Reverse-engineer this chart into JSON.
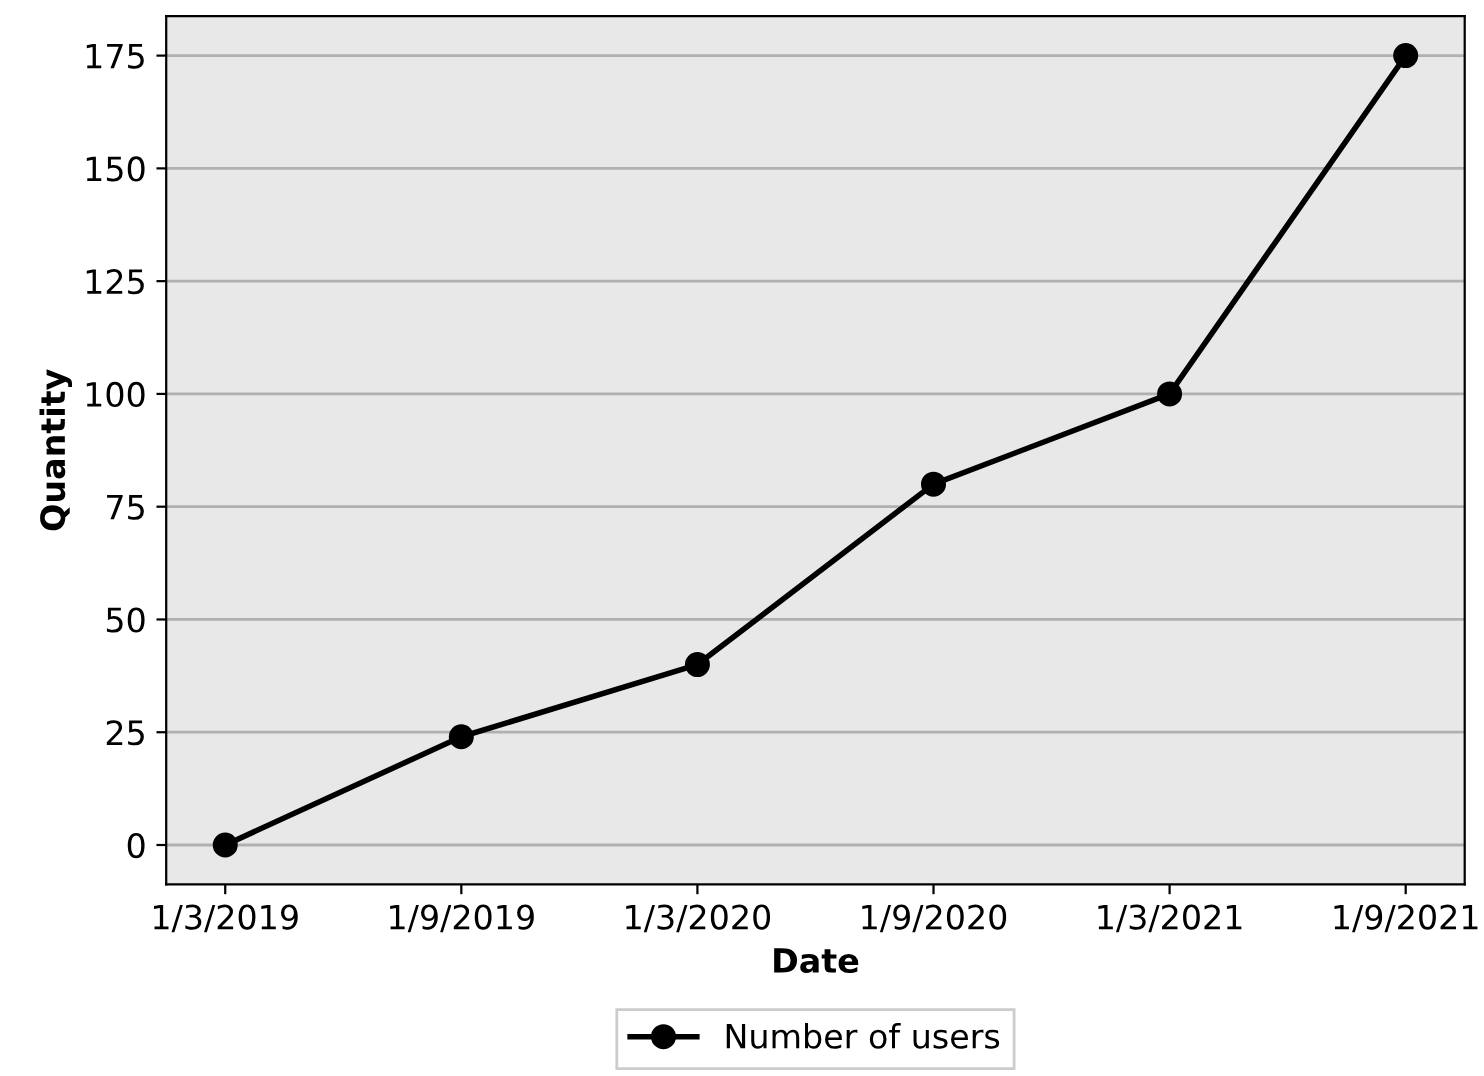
{
  "chart_data": {
    "type": "line",
    "xlabel": "Date",
    "ylabel": "Quantity",
    "categories": [
      "1/3/2019",
      "1/9/2019",
      "1/3/2020",
      "1/9/2020",
      "1/3/2021",
      "1/9/2021"
    ],
    "series": [
      {
        "name": "Number of users",
        "color": "#000000",
        "values": [
          0,
          24,
          40,
          80,
          100,
          175
        ]
      }
    ],
    "ylim": [
      -8.75,
      183.75
    ],
    "yticks": [
      0,
      25,
      50,
      75,
      100,
      125,
      150,
      175
    ],
    "grid": "y",
    "legend": "bottom",
    "marker": "circle",
    "line_style": "solid"
  }
}
